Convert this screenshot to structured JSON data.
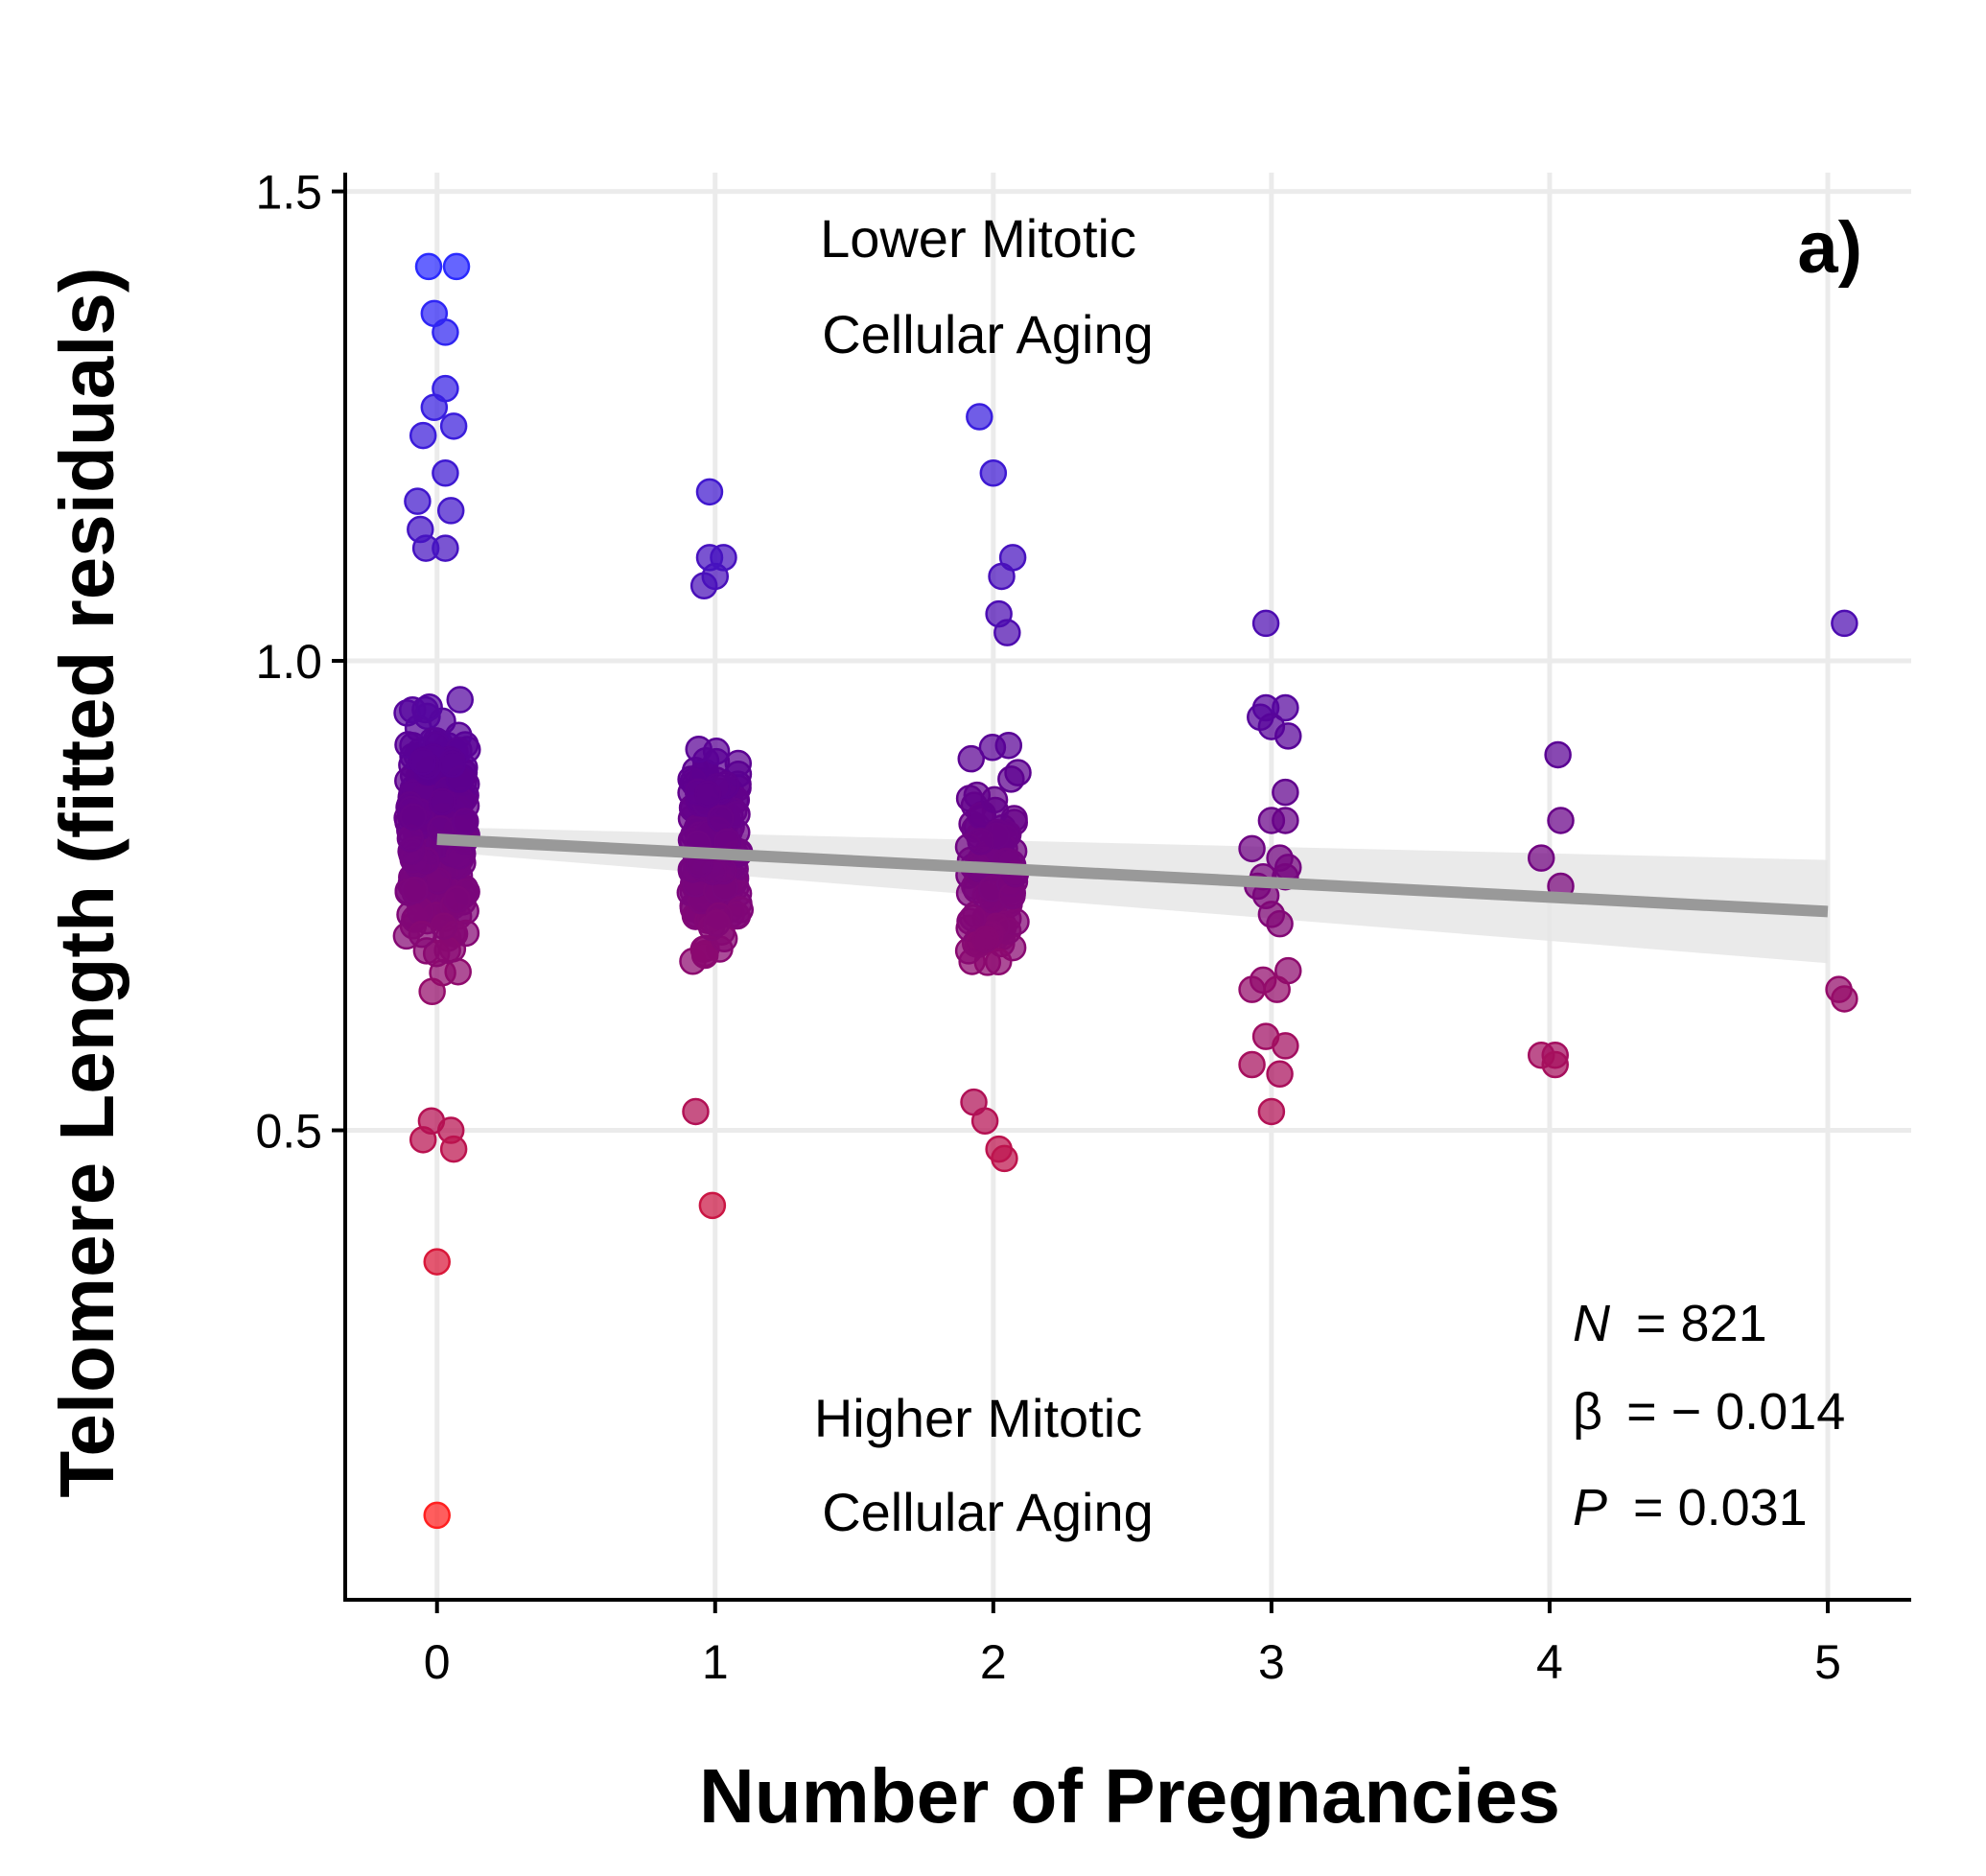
{
  "chart_data": {
    "type": "scatter",
    "xlabel": "Number of Pregnancies",
    "ylabel": "Telomere Length (fitted residuals)",
    "x_ticks": [
      "0",
      "1",
      "2",
      "3",
      "4",
      "5"
    ],
    "y_ticks": [
      "0.5",
      "1.0",
      "1.5"
    ],
    "xlim": [
      -0.33,
      5.3
    ],
    "ylim": [
      0.0,
      1.52
    ],
    "grid": true,
    "panel_label": "a)",
    "annotations": {
      "top_line1": "Lower Mitotic",
      "top_line2": "Cellular Aging",
      "bottom_line1": "Higher Mitotic",
      "bottom_line2": "Cellular Aging"
    },
    "stats": {
      "n_symbol": "N",
      "n_value": "= 821",
      "beta_symbol": "β",
      "beta_value": "= − 0.014",
      "p_symbol": "P",
      "p_value": "= 0.031"
    },
    "regression": {
      "x": [
        0,
        5
      ],
      "y": [
        0.81,
        0.733
      ],
      "ci_upper": [
        0.823,
        0.788
      ],
      "ci_lower": [
        0.797,
        0.678
      ],
      "line_color": "#999999",
      "band_color": "#e6e6e6"
    },
    "color_scale": {
      "low_color": "#ff2020",
      "mid_color": "#5c0090",
      "high_color": "#2a2aff",
      "low_value": 0.2,
      "mid_value": 0.88,
      "high_value": 1.42
    },
    "points": {
      "outliers": [
        {
          "x": -0.03,
          "y": 1.42
        },
        {
          "x": 0.07,
          "y": 1.42
        },
        {
          "x": -0.01,
          "y": 1.37
        },
        {
          "x": 0.03,
          "y": 1.35
        },
        {
          "x": 0.03,
          "y": 1.29
        },
        {
          "x": -0.01,
          "y": 1.27
        },
        {
          "x": -0.05,
          "y": 1.24
        },
        {
          "x": 0.06,
          "y": 1.25
        },
        {
          "x": 0.03,
          "y": 1.2
        },
        {
          "x": -0.07,
          "y": 1.17
        },
        {
          "x": 0.05,
          "y": 1.16
        },
        {
          "x": -0.06,
          "y": 1.14
        },
        {
          "x": 0.0,
          "y": 0.36
        },
        {
          "x": 0.0,
          "y": 0.09
        },
        {
          "x": -0.05,
          "y": 0.49
        },
        {
          "x": 0.05,
          "y": 0.5
        },
        {
          "x": 0.06,
          "y": 0.48
        },
        {
          "x": -0.02,
          "y": 0.51
        },
        {
          "x": 0.98,
          "y": 1.18
        },
        {
          "x": -0.04,
          "y": 1.12
        },
        {
          "x": 0.03,
          "y": 1.12
        },
        {
          "x": 0.96,
          "y": 1.08
        },
        {
          "x": 1.0,
          "y": 1.09
        },
        {
          "x": 0.98,
          "y": 1.11
        },
        {
          "x": 1.03,
          "y": 1.11
        },
        {
          "x": 0.99,
          "y": 0.42
        },
        {
          "x": 0.93,
          "y": 0.52
        },
        {
          "x": 1.95,
          "y": 1.26
        },
        {
          "x": 2.0,
          "y": 1.2
        },
        {
          "x": 2.07,
          "y": 1.11
        },
        {
          "x": 2.03,
          "y": 1.09
        },
        {
          "x": 2.02,
          "y": 1.05
        },
        {
          "x": 2.05,
          "y": 1.03
        },
        {
          "x": 2.04,
          "y": 0.47
        },
        {
          "x": 2.02,
          "y": 0.48
        },
        {
          "x": 1.97,
          "y": 0.51
        },
        {
          "x": 1.93,
          "y": 0.53
        }
      ],
      "clusters": [
        {
          "x_center": 0.0,
          "x_spread": 0.11,
          "y_min": 0.54,
          "y_max": 1.1,
          "count": 340
        },
        {
          "x_center": 1.0,
          "x_spread": 0.09,
          "y_min": 0.55,
          "y_max": 1.02,
          "count": 190
        },
        {
          "x_center": 2.0,
          "x_spread": 0.09,
          "y_min": 0.56,
          "y_max": 1.0,
          "count": 105
        }
      ],
      "group3": [
        {
          "x": 2.98,
          "y": 1.04
        },
        {
          "x": 2.96,
          "y": 0.94
        },
        {
          "x": 2.98,
          "y": 0.95
        },
        {
          "x": 3.05,
          "y": 0.95
        },
        {
          "x": 3.0,
          "y": 0.93
        },
        {
          "x": 3.06,
          "y": 0.92
        },
        {
          "x": 3.05,
          "y": 0.86
        },
        {
          "x": 3.0,
          "y": 0.83
        },
        {
          "x": 3.05,
          "y": 0.83
        },
        {
          "x": 2.93,
          "y": 0.8
        },
        {
          "x": 3.03,
          "y": 0.79
        },
        {
          "x": 3.06,
          "y": 0.78
        },
        {
          "x": 2.97,
          "y": 0.77
        },
        {
          "x": 3.05,
          "y": 0.77
        },
        {
          "x": 2.98,
          "y": 0.75
        },
        {
          "x": 2.95,
          "y": 0.76
        },
        {
          "x": 3.0,
          "y": 0.73
        },
        {
          "x": 3.03,
          "y": 0.72
        },
        {
          "x": 3.06,
          "y": 0.67
        },
        {
          "x": 2.93,
          "y": 0.65
        },
        {
          "x": 2.97,
          "y": 0.66
        },
        {
          "x": 3.02,
          "y": 0.65
        },
        {
          "x": 2.98,
          "y": 0.6
        },
        {
          "x": 3.05,
          "y": 0.59
        },
        {
          "x": 2.93,
          "y": 0.57
        },
        {
          "x": 3.03,
          "y": 0.56
        },
        {
          "x": 3.0,
          "y": 0.52
        }
      ],
      "group4": [
        {
          "x": 4.03,
          "y": 0.9
        },
        {
          "x": 4.04,
          "y": 0.83
        },
        {
          "x": 3.97,
          "y": 0.79
        },
        {
          "x": 4.04,
          "y": 0.76
        },
        {
          "x": 3.97,
          "y": 0.58
        },
        {
          "x": 4.02,
          "y": 0.58
        },
        {
          "x": 4.02,
          "y": 0.57
        }
      ],
      "group5": [
        {
          "x": 5.06,
          "y": 1.04
        },
        {
          "x": 5.04,
          "y": 0.65
        },
        {
          "x": 5.06,
          "y": 0.64
        }
      ]
    }
  }
}
